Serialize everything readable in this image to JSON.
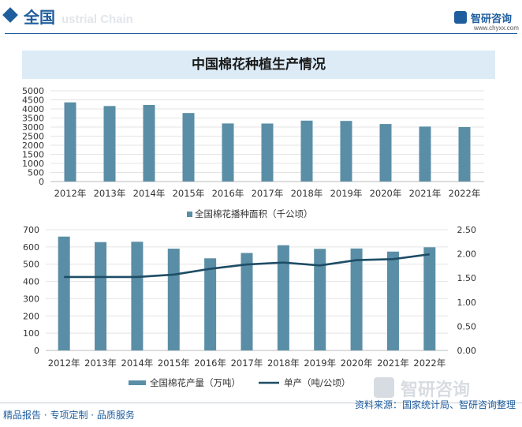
{
  "header": {
    "title": "全国",
    "ghost_text": "ustrial Chain"
  },
  "brand": {
    "name": "智研咨询",
    "url": "www.chyxx.com"
  },
  "chart_title": "中国棉花种植生产情况",
  "colors": {
    "bar": "#5a8ea6",
    "line": "#1e4d66",
    "accent": "#1f5e9e",
    "title_bg": "#dcebf6"
  },
  "chart_data": [
    {
      "type": "bar",
      "categories": [
        "2012年",
        "2013年",
        "2014年",
        "2015年",
        "2016年",
        "2017年",
        "2018年",
        "2019年",
        "2020年",
        "2021年",
        "2022年"
      ],
      "series": [
        {
          "name": "全国棉花播种面积（千公顷）",
          "values": [
            4360,
            4160,
            4220,
            3775,
            3200,
            3195,
            3355,
            3340,
            3170,
            3028,
            3000
          ]
        }
      ],
      "yticks": [
        "0",
        "500",
        "1000",
        "1500",
        "2000",
        "2500",
        "3000",
        "3500",
        "4000",
        "4500",
        "5000"
      ],
      "ylim": [
        0,
        5000
      ],
      "legend": "bottom"
    },
    {
      "type": "bar+line",
      "categories": [
        "2012年",
        "2013年",
        "2014年",
        "2015年",
        "2016年",
        "2017年",
        "2018年",
        "2019年",
        "2020年",
        "2021年",
        "2022年"
      ],
      "series": [
        {
          "name": "全国棉花产量（万吨）",
          "type": "bar",
          "axis": "left",
          "values": [
            660,
            628,
            630,
            590,
            534,
            565,
            610,
            589,
            591,
            573,
            598
          ]
        },
        {
          "name": "单产（吨/公顷）",
          "type": "line",
          "axis": "right",
          "values": [
            1.52,
            1.52,
            1.52,
            1.57,
            1.69,
            1.78,
            1.82,
            1.76,
            1.87,
            1.89,
            1.99
          ]
        }
      ],
      "yticks_left": [
        "0",
        "100",
        "200",
        "300",
        "400",
        "500",
        "600",
        "700"
      ],
      "yticks_right": [
        "0.00",
        "0.50",
        "1.00",
        "1.50",
        "2.00",
        "2.50"
      ],
      "ylim_left": [
        0,
        700
      ],
      "ylim_right": [
        0,
        2.5
      ],
      "legend": "bottom"
    }
  ],
  "footer": {
    "left": "精品报告 · 专项定制 · 品质服务",
    "source": "资料来源：国家统计局、智研咨询整理"
  }
}
